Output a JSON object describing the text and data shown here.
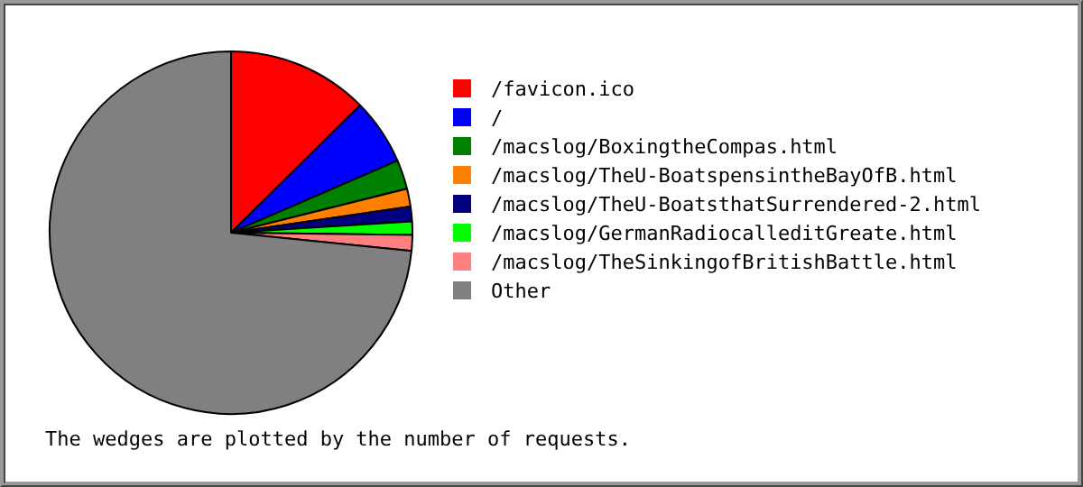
{
  "chart_data": {
    "type": "pie",
    "categories": [
      "/favicon.ico",
      "/",
      "/macslog/BoxingtheCompas.html",
      "/macslog/TheU-BoatspensintheBayOfB.html",
      "/macslog/TheU-BoatsthatSurrendered-2.html",
      "/macslog/GermanRadiocalleditGreate.html",
      "/macslog/TheSinkingofBritishBattle.html",
      "Other"
    ],
    "values": [
      12.6,
      5.9,
      2.6,
      1.6,
      1.3,
      1.2,
      1.4,
      73.4
    ],
    "colors": [
      "#ff0000",
      "#0000ff",
      "#008000",
      "#ff8000",
      "#000080",
      "#00ff00",
      "#ff8080",
      "#808080"
    ],
    "legend": "right",
    "annotations": [
      "The wedges are plotted by the number of requests."
    ]
  }
}
